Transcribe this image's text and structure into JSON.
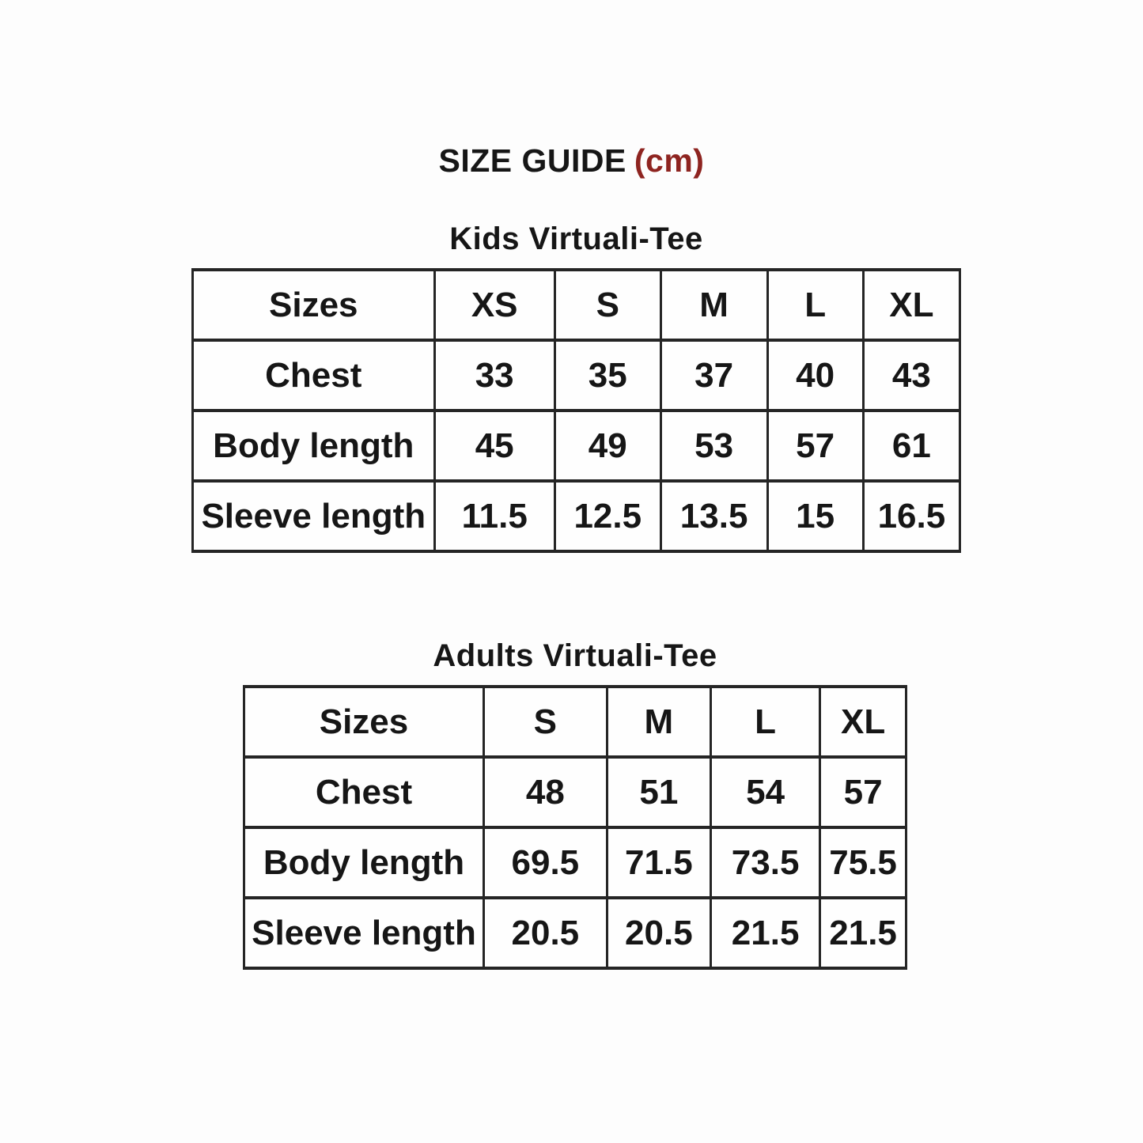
{
  "page": {
    "title": "SIZE GUIDE",
    "unit": "(cm)",
    "unit_color": "#8e2420",
    "text_color": "#161616",
    "border_color": "#252525"
  },
  "tables": [
    {
      "heading": "Kids Virtuali-Tee",
      "columns": [
        "Sizes",
        "XS",
        "S",
        "M",
        "L",
        "XL"
      ],
      "rows": [
        {
          "label": "Chest",
          "values": [
            "33",
            "35",
            "37",
            "40",
            "43"
          ]
        },
        {
          "label": "Body length",
          "values": [
            "45",
            "49",
            "53",
            "57",
            "61"
          ]
        },
        {
          "label": "Sleeve length",
          "values": [
            "11.5",
            "12.5",
            "13.5",
            "15",
            "16.5"
          ]
        }
      ]
    },
    {
      "heading": "Adults Virtuali-Tee",
      "columns": [
        "Sizes",
        "S",
        "M",
        "L",
        "XL"
      ],
      "rows": [
        {
          "label": "Chest",
          "values": [
            "48",
            "51",
            "54",
            "57"
          ]
        },
        {
          "label": "Body length",
          "values": [
            "69.5",
            "71.5",
            "73.5",
            "75.5"
          ]
        },
        {
          "label": "Sleeve length",
          "values": [
            "20.5",
            "20.5",
            "21.5",
            "21.5"
          ]
        }
      ]
    }
  ]
}
